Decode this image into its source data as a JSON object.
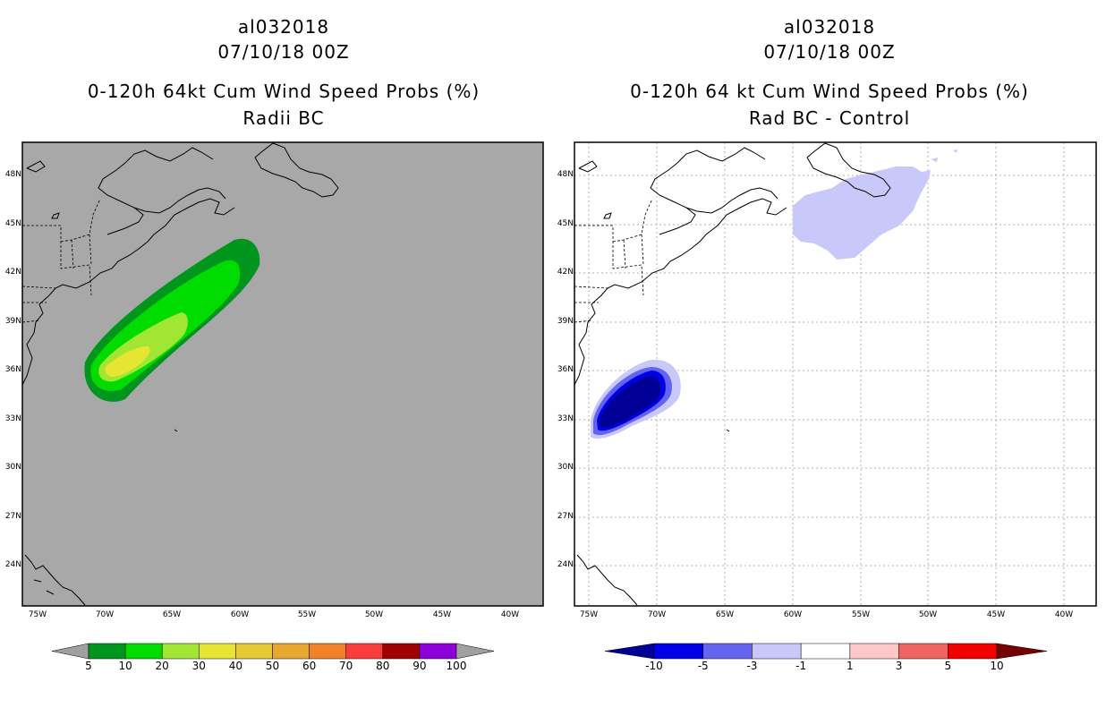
{
  "left_panel": {
    "storm_id": "al032018",
    "datetime": "07/10/18 00Z",
    "product": "0-120h 64kt Cum Wind Speed Probs (%)",
    "subtitle": "Radii BC",
    "lat_labels": [
      "48N",
      "45N",
      "42N",
      "39N",
      "36N",
      "33N",
      "30N",
      "27N",
      "24N"
    ],
    "lon_labels": [
      "75W",
      "70W",
      "65W",
      "60W",
      "55W",
      "50W",
      "45W",
      "40W"
    ],
    "colorbar": {
      "labels": [
        "5",
        "10",
        "20",
        "30",
        "40",
        "50",
        "60",
        "70",
        "80",
        "90",
        "100"
      ],
      "colors": [
        "#00961e",
        "#00dc00",
        "#a0e632",
        "#e6e632",
        "#e6c832",
        "#e6a82e",
        "#f0822a",
        "#fa3c3c",
        "#a00000",
        "#8c00dc"
      ],
      "end_color": "#a0a0a0"
    },
    "background_color": "#a8a8a8"
  },
  "right_panel": {
    "storm_id": "al032018",
    "datetime": "07/10/18 00Z",
    "product": "0-120h 64 kt Cum Wind Speed Probs (%)",
    "subtitle": "Rad BC - Control",
    "lat_labels": [
      "48N",
      "45N",
      "42N",
      "39N",
      "36N",
      "33N",
      "30N",
      "27N",
      "24N"
    ],
    "lon_labels": [
      "75W",
      "70W",
      "65W",
      "60W",
      "55W",
      "50W",
      "45W",
      "40W"
    ],
    "colorbar": {
      "labels": [
        "-10",
        "-5",
        "-3",
        "-1",
        "1",
        "3",
        "5",
        "10"
      ],
      "colors": [
        "#0000e6",
        "#6464f0",
        "#c8c8fa",
        "#ffffff",
        "#ffc8c8",
        "#f06464",
        "#f00000"
      ],
      "low_end_color": "#000096",
      "high_end_color": "#780000"
    },
    "background_color": "#ffffff"
  }
}
